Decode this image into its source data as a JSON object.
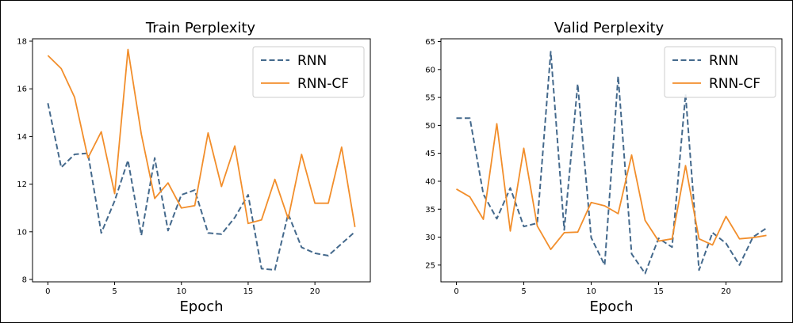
{
  "colors": {
    "rnn": "#44698c",
    "rnn_cf": "#f28e2b",
    "axis": "#000000",
    "legend_border": "#cccccc"
  },
  "chart_data": [
    {
      "type": "line",
      "title": "Train Perplexity",
      "xlabel": "Epoch",
      "ylabel": "",
      "xlim": [
        -1.15,
        24.15
      ],
      "ylim": [
        7.9,
        18.1
      ],
      "xticks": [
        0,
        5,
        10,
        15,
        20
      ],
      "yticks": [
        8,
        10,
        12,
        14,
        16,
        18
      ],
      "grid": false,
      "legend_position": "top-right",
      "series": [
        {
          "name": "RNN",
          "style": "dashed",
          "color": "#44698c",
          "x": [
            0,
            1,
            2,
            3,
            4,
            5,
            6,
            7,
            8,
            9,
            10,
            11,
            12,
            13,
            14,
            15,
            16,
            17,
            18,
            19,
            20,
            21,
            22,
            23
          ],
          "values": [
            15.4,
            12.7,
            13.25,
            13.3,
            9.95,
            11.3,
            13.0,
            9.85,
            13.1,
            10.05,
            11.55,
            11.75,
            9.95,
            9.9,
            10.6,
            11.55,
            8.45,
            8.4,
            10.75,
            9.35,
            9.1,
            9.0,
            9.5,
            10.0
          ]
        },
        {
          "name": "RNN-CF",
          "style": "solid",
          "color": "#f28e2b",
          "x": [
            0,
            1,
            2,
            3,
            4,
            5,
            6,
            7,
            8,
            9,
            10,
            11,
            12,
            13,
            14,
            15,
            16,
            17,
            18,
            19,
            20,
            21,
            22,
            23
          ],
          "values": [
            17.4,
            16.85,
            15.65,
            13.1,
            14.2,
            11.6,
            17.65,
            14.1,
            11.4,
            12.05,
            11.0,
            11.1,
            14.15,
            11.9,
            13.6,
            10.35,
            10.5,
            12.2,
            10.55,
            13.25,
            11.2,
            11.2,
            13.55,
            10.2
          ]
        }
      ]
    },
    {
      "type": "line",
      "title": "Valid Perplexity",
      "xlabel": "Epoch",
      "ylabel": "",
      "xlim": [
        -1.15,
        24.15
      ],
      "ylim": [
        22.0,
        65.5
      ],
      "xticks": [
        0,
        5,
        10,
        15,
        20
      ],
      "yticks": [
        25,
        30,
        35,
        40,
        45,
        50,
        55,
        60,
        65
      ],
      "grid": false,
      "legend_position": "top-right",
      "series": [
        {
          "name": "RNN",
          "style": "dashed",
          "color": "#44698c",
          "x": [
            0,
            1,
            2,
            3,
            4,
            5,
            6,
            7,
            8,
            9,
            10,
            11,
            12,
            13,
            14,
            15,
            16,
            17,
            18,
            19,
            20,
            21,
            22,
            23
          ],
          "values": [
            51.3,
            51.3,
            37.7,
            33.3,
            38.8,
            31.9,
            32.5,
            63.2,
            31.3,
            57.4,
            29.9,
            25.0,
            58.8,
            27.0,
            23.5,
            29.8,
            28.2,
            55.6,
            24.1,
            30.8,
            28.9,
            25.0,
            30.0,
            31.6
          ]
        },
        {
          "name": "RNN-CF",
          "style": "solid",
          "color": "#f28e2b",
          "x": [
            0,
            1,
            2,
            3,
            4,
            5,
            6,
            7,
            8,
            9,
            10,
            11,
            12,
            13,
            14,
            15,
            16,
            17,
            18,
            19,
            20,
            21,
            22,
            23
          ],
          "values": [
            38.6,
            37.2,
            33.2,
            50.3,
            31.1,
            45.9,
            32.0,
            27.8,
            30.8,
            30.9,
            36.2,
            35.6,
            34.2,
            44.7,
            33.0,
            29.3,
            29.7,
            42.8,
            29.7,
            28.6,
            33.7,
            29.7,
            29.9,
            30.3
          ]
        }
      ]
    }
  ]
}
